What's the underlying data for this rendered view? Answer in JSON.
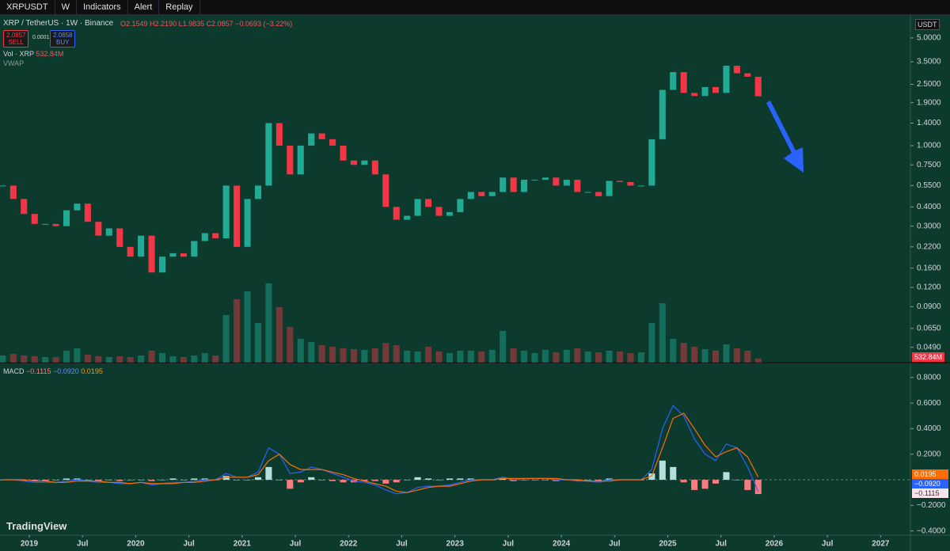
{
  "toolbar": {
    "symbol": "XRPUSDT",
    "interval": "W",
    "items": [
      "Indicators",
      "Alert",
      "Replay"
    ]
  },
  "legend": {
    "title": "XRP / TetherUS · 1W · Binance",
    "ohlc": [
      "O2.1549",
      "H2.2190",
      "L1.9835",
      "C2.0857"
    ],
    "change": "−0.0693 (−3.22%)",
    "sell": {
      "price": "2.0857",
      "label": "SELL"
    },
    "spread": "0.0001",
    "buy": {
      "price": "2.0858",
      "label": "BUY"
    },
    "volume": {
      "label": "Vol · XRP",
      "value": "532.84M"
    },
    "vwap": "VWAP",
    "macd": {
      "label": "MACD",
      "values": [
        "−0.1115",
        "−0.0920",
        "0.0195"
      ]
    }
  },
  "currency": "USDT",
  "brand": "TradingView",
  "chart_data": [
    {
      "type": "candlestick",
      "log_scale": true,
      "up_color": "#22ab94",
      "down_color": "#f23645",
      "xlim": [
        2018.725,
        2027.28
      ],
      "ylim": [
        0.039,
        6.96
      ],
      "yticks": [
        {
          "value": 5,
          "label": "5.0000"
        },
        {
          "value": 3.5,
          "label": "3.5000"
        },
        {
          "value": 2.5,
          "label": "2.5000"
        },
        {
          "value": 1.9,
          "label": "1.9000"
        },
        {
          "value": 1.4,
          "label": "1.4000"
        },
        {
          "value": 1,
          "label": "1.0000"
        },
        {
          "value": 0.75,
          "label": "0.7500"
        },
        {
          "value": 0.55,
          "label": "0.5500"
        },
        {
          "value": 0.4,
          "label": "0.4000"
        },
        {
          "value": 0.3,
          "label": "0.3000"
        },
        {
          "value": 0.22,
          "label": "0.2200"
        },
        {
          "value": 0.16,
          "label": "0.1600"
        },
        {
          "value": 0.12,
          "label": "0.1200"
        },
        {
          "value": 0.09,
          "label": "0.0900"
        },
        {
          "value": 0.065,
          "label": "0.0650"
        },
        {
          "value": 0.049,
          "label": "0.0490"
        }
      ],
      "x": [
        2018.75,
        2018.85,
        2018.95,
        2019.05,
        2019.15,
        2019.25,
        2019.35,
        2019.45,
        2019.55,
        2019.65,
        2019.75,
        2019.85,
        2019.95,
        2020.05,
        2020.15,
        2020.25,
        2020.35,
        2020.45,
        2020.55,
        2020.65,
        2020.75,
        2020.85,
        2020.95,
        2021.05,
        2021.15,
        2021.25,
        2021.35,
        2021.45,
        2021.55,
        2021.65,
        2021.75,
        2021.85,
        2021.95,
        2022.05,
        2022.15,
        2022.25,
        2022.35,
        2022.45,
        2022.55,
        2022.65,
        2022.75,
        2022.85,
        2022.95,
        2023.05,
        2023.15,
        2023.25,
        2023.35,
        2023.45,
        2023.55,
        2023.65,
        2023.75,
        2023.85,
        2023.95,
        2024.05,
        2024.15,
        2024.25,
        2024.35,
        2024.45,
        2024.55,
        2024.65,
        2024.75,
        2024.85,
        2024.95,
        2025.05,
        2025.15,
        2025.25,
        2025.35,
        2025.45,
        2025.55,
        2025.65,
        2025.75,
        2025.85
      ],
      "values": [
        0.55,
        0.45,
        0.36,
        0.31,
        0.31,
        0.3,
        0.38,
        0.42,
        0.32,
        0.26,
        0.29,
        0.22,
        0.19,
        0.26,
        0.15,
        0.19,
        0.2,
        0.19,
        0.24,
        0.27,
        0.25,
        0.55,
        0.22,
        0.45,
        0.55,
        1.4,
        1.0,
        0.65,
        1.0,
        1.2,
        1.1,
        1.0,
        0.8,
        0.75,
        0.8,
        0.65,
        0.4,
        0.33,
        0.35,
        0.45,
        0.4,
        0.35,
        0.37,
        0.45,
        0.5,
        0.47,
        0.5,
        0.62,
        0.5,
        0.6,
        0.6,
        0.62,
        0.55,
        0.6,
        0.5,
        0.5,
        0.47,
        0.59,
        0.58,
        0.55,
        0.55,
        1.1,
        2.3,
        3.0,
        2.2,
        2.1,
        2.4,
        2.2,
        3.3,
        2.95,
        2.8,
        2.09
      ],
      "volume": [
        900,
        1100,
        900,
        800,
        700,
        700,
        1500,
        1800,
        1000,
        800,
        700,
        800,
        700,
        900,
        1500,
        1200,
        800,
        700,
        900,
        1200,
        900,
        6000,
        8000,
        9000,
        5000,
        10000,
        7000,
        4500,
        3000,
        2600,
        2200,
        2000,
        1800,
        1700,
        1600,
        1800,
        2500,
        2200,
        1500,
        1400,
        2000,
        1400,
        1200,
        1500,
        1500,
        1400,
        1600,
        4000,
        1800,
        1500,
        1200,
        1600,
        1300,
        1600,
        1800,
        1400,
        1300,
        1500,
        1400,
        1200,
        1300,
        5000,
        7500,
        3000,
        2500,
        2000,
        1700,
        1500,
        2300,
        1800,
        1500,
        532.84
      ]
    },
    {
      "type": "macd",
      "xlim": [
        2018.725,
        2027.28
      ],
      "ylim": [
        -0.433,
        0.904
      ],
      "yticks": [
        {
          "value": 0.8,
          "label": "0.8000"
        },
        {
          "value": 0.6,
          "label": "0.6000"
        },
        {
          "value": 0.4,
          "label": "0.4000"
        },
        {
          "value": 0.2,
          "label": "0.2000"
        },
        {
          "value": -0.2,
          "label": "−0.2000"
        },
        {
          "value": -0.4,
          "label": "−0.4000"
        }
      ],
      "xticks": [
        {
          "value": 2019,
          "label": "2019"
        },
        {
          "value": 2019.5,
          "label": "Jul"
        },
        {
          "value": 2020,
          "label": "2020"
        },
        {
          "value": 2020.5,
          "label": "Jul"
        },
        {
          "value": 2021,
          "label": "2021"
        },
        {
          "value": 2021.5,
          "label": "Jul"
        },
        {
          "value": 2022,
          "label": "2022"
        },
        {
          "value": 2022.5,
          "label": "Jul"
        },
        {
          "value": 2023,
          "label": "2023"
        },
        {
          "value": 2023.5,
          "label": "Jul"
        },
        {
          "value": 2024,
          "label": "2024"
        },
        {
          "value": 2024.5,
          "label": "Jul"
        },
        {
          "value": 2025,
          "label": "2025"
        },
        {
          "value": 2025.5,
          "label": "Jul"
        },
        {
          "value": 2026,
          "label": "2026"
        },
        {
          "value": 2026.5,
          "label": "Jul"
        },
        {
          "value": 2027,
          "label": "2027"
        }
      ],
      "x": [
        2018.75,
        2018.85,
        2018.95,
        2019.05,
        2019.15,
        2019.25,
        2019.35,
        2019.45,
        2019.55,
        2019.65,
        2019.75,
        2019.85,
        2019.95,
        2020.05,
        2020.15,
        2020.25,
        2020.35,
        2020.45,
        2020.55,
        2020.65,
        2020.75,
        2020.85,
        2020.95,
        2021.05,
        2021.15,
        2021.25,
        2021.35,
        2021.45,
        2021.55,
        2021.65,
        2021.75,
        2021.85,
        2021.95,
        2022.05,
        2022.15,
        2022.25,
        2022.35,
        2022.45,
        2022.55,
        2022.65,
        2022.75,
        2022.85,
        2022.95,
        2023.05,
        2023.15,
        2023.25,
        2023.35,
        2023.45,
        2023.55,
        2023.65,
        2023.75,
        2023.85,
        2023.95,
        2024.05,
        2024.15,
        2024.25,
        2024.35,
        2024.45,
        2024.55,
        2024.65,
        2024.75,
        2024.85,
        2024.95,
        2025.05,
        2025.15,
        2025.25,
        2025.35,
        2025.45,
        2025.55,
        2025.65,
        2025.75,
        2025.85
      ],
      "histogram": {
        "up_color": "#b2dfdb",
        "down_color": "#f77c80",
        "values": [
          0,
          0,
          -0.01,
          -0.01,
          -0.01,
          0,
          0.01,
          0.01,
          0,
          -0.01,
          0,
          -0.01,
          0,
          0,
          -0.01,
          0,
          0.01,
          0,
          0.01,
          0.01,
          0,
          0.03,
          0,
          0,
          0.02,
          0.1,
          0,
          -0.07,
          -0.02,
          0.02,
          0,
          -0.01,
          -0.02,
          -0.02,
          -0.01,
          -0.01,
          -0.03,
          -0.02,
          0,
          0.02,
          0.01,
          0,
          0.01,
          0.01,
          0.01,
          0,
          0,
          0.01,
          -0.01,
          0,
          0,
          0,
          -0.01,
          0,
          -0.01,
          0,
          -0.01,
          0.01,
          0,
          0,
          0,
          0.05,
          0.15,
          0.1,
          -0.02,
          -0.08,
          -0.07,
          -0.03,
          0.06,
          0,
          -0.08,
          -0.1115
        ]
      },
      "series": [
        {
          "color": "#2962ff",
          "values": [
            0,
            0,
            -0.01,
            -0.02,
            -0.02,
            -0.02,
            -0.01,
            0,
            -0.01,
            -0.02,
            -0.02,
            -0.03,
            -0.03,
            -0.02,
            -0.04,
            -0.03,
            -0.02,
            -0.02,
            -0.01,
            0,
            0,
            0.05,
            0.02,
            0.02,
            0.06,
            0.25,
            0.2,
            0.05,
            0.06,
            0.1,
            0.08,
            0.05,
            0.02,
            -0.01,
            -0.02,
            -0.04,
            -0.08,
            -0.11,
            -0.1,
            -0.06,
            -0.05,
            -0.05,
            -0.04,
            -0.02,
            0,
            0,
            0,
            0.02,
            0,
            0.01,
            0.01,
            0.01,
            0,
            0,
            -0.01,
            -0.01,
            -0.02,
            0,
            0,
            0,
            0,
            0.08,
            0.4,
            0.58,
            0.5,
            0.32,
            0.2,
            0.15,
            0.28,
            0.25,
            0.1,
            -0.092
          ]
        },
        {
          "color": "#ff6d00",
          "values": [
            0,
            0,
            0,
            -0.01,
            -0.01,
            -0.02,
            -0.02,
            -0.01,
            -0.01,
            -0.01,
            -0.02,
            -0.02,
            -0.03,
            -0.02,
            -0.03,
            -0.03,
            -0.03,
            -0.02,
            -0.02,
            -0.01,
            0,
            0.02,
            0.02,
            0.02,
            0.04,
            0.15,
            0.2,
            0.12,
            0.08,
            0.08,
            0.08,
            0.06,
            0.04,
            0.01,
            -0.01,
            -0.03,
            -0.05,
            -0.09,
            -0.1,
            -0.08,
            -0.06,
            -0.05,
            -0.05,
            -0.03,
            -0.01,
            0,
            0,
            0.01,
            0.01,
            0.01,
            0.01,
            0.01,
            0.01,
            0,
            0,
            -0.01,
            -0.01,
            -0.01,
            0,
            0,
            0,
            0.03,
            0.25,
            0.48,
            0.52,
            0.4,
            0.27,
            0.18,
            0.22,
            0.25,
            0.18,
            0.0195
          ]
        }
      ]
    }
  ]
}
